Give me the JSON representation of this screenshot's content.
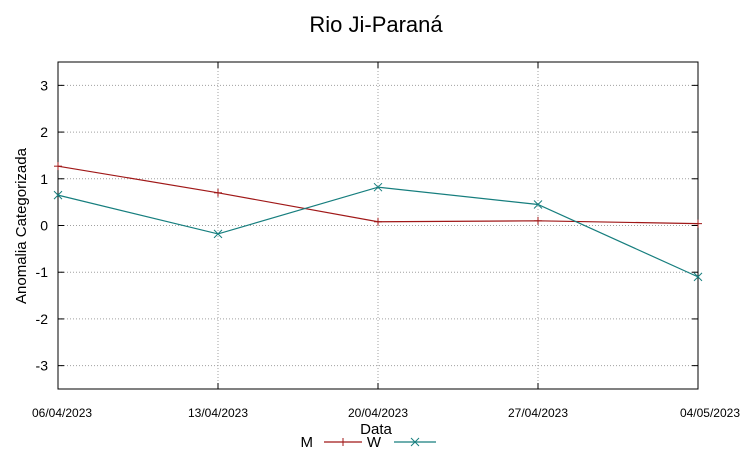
{
  "chart_data": {
    "type": "line",
    "title": "Rio Ji-Paraná",
    "xlabel": "Data",
    "ylabel": "Anomalia Categorizada",
    "categories": [
      "06/04/2023",
      "13/04/2023",
      "20/04/2023",
      "27/04/2023",
      "04/05/2023"
    ],
    "yticks": [
      "-3",
      "-2",
      "-1",
      "0",
      "1",
      "2",
      "3"
    ],
    "ylim": [
      -3.5,
      3.5
    ],
    "grid": true,
    "legend_position": "bottom",
    "series": [
      {
        "name": "M",
        "values": [
          1.27,
          0.7,
          0.08,
          0.1,
          0.04
        ],
        "color": "#a01818",
        "marker": "plus"
      },
      {
        "name": "W",
        "values": [
          0.65,
          -0.18,
          0.82,
          0.45,
          -1.1
        ],
        "color": "#167e7e",
        "marker": "x"
      }
    ]
  }
}
